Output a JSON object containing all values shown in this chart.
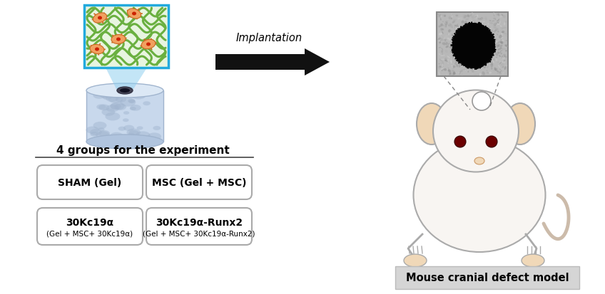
{
  "implantation_label": "Implantation",
  "groups_title": "4 groups for the experiment",
  "box1_main": "SHAM (Gel)",
  "box2_main": "MSC (Gel + MSC)",
  "box3_main": "30Kc19α",
  "box3_sub": "(Gel + MSC+ 30Kc19α)",
  "box4_main": "30Kc19α-Runx2",
  "box4_sub": "(Gel + MSC+ 30Kc19α-Runx2)",
  "model_label": "Mouse cranial defect model",
  "bg_color": "#ffffff",
  "box_edge_color": "#aaaaaa",
  "box_face_color": "#ffffff",
  "text_color": "#000000",
  "arrow_color": "#111111",
  "gel_green": "#6ab040",
  "gel_bg": "#e8f5e0",
  "gel_frame_color": "#22aadd",
  "scaffold_light": "#c8d8ec",
  "scaffold_mid": "#b0c4de",
  "scaffold_dark": "#a0b4ce",
  "mouse_body": "#f8f5f2",
  "mouse_ear": "#f0d8b8",
  "mouse_outline": "#aaaaaa",
  "xray_bg": "#b8b8b8",
  "model_box_color": "#d8d8d8",
  "cell_color": "#f0a060",
  "cell_edge": "#cc6820",
  "nucleus_color": "#cc2200"
}
